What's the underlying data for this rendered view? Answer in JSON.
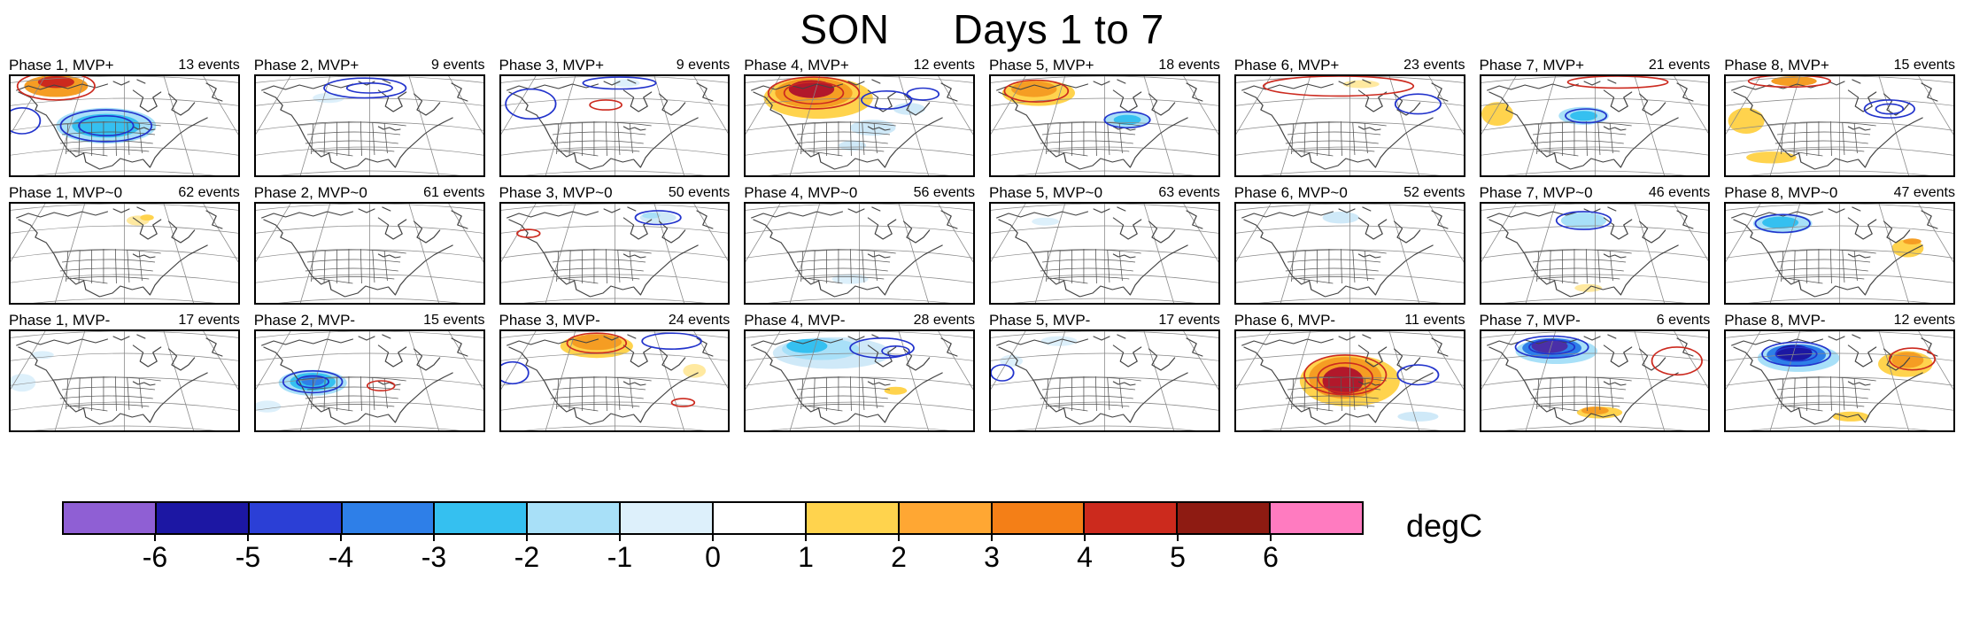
{
  "title": {
    "left": "SON",
    "right": "Days 1 to 7"
  },
  "colorbar": {
    "unit": "degC",
    "ticks": [
      "-6",
      "-5",
      "-4",
      "-3",
      "-2",
      "-1",
      "0",
      "1",
      "2",
      "3",
      "4",
      "5",
      "6"
    ],
    "colors": [
      "#8f5fd4",
      "#1c17a3",
      "#2b3fd6",
      "#2e7fe8",
      "#35c0f0",
      "#a8e0f8",
      "#ddf0fb",
      "#ffffff",
      "#ffd34d",
      "#ffa733",
      "#f47f17",
      "#cc2a1d",
      "#8e1b12",
      "#ff7bc0"
    ]
  },
  "contour_colors": {
    "b": "#2233cc",
    "r": "#cc2a1f"
  },
  "chart_data": {
    "type": "heatmap",
    "title": "SON Days 1 to 7",
    "panel_rows": [
      "MVP+",
      "MVP~0",
      "MVP-"
    ],
    "panel_columns": [
      "Phase 1",
      "Phase 2",
      "Phase 3",
      "Phase 4",
      "Phase 5",
      "Phase 6",
      "Phase 7",
      "Phase 8"
    ],
    "events_per_panel": [
      [
        13,
        9,
        9,
        12,
        18,
        23,
        21,
        15
      ],
      [
        62,
        61,
        50,
        56,
        63,
        52,
        46,
        47
      ],
      [
        17,
        15,
        24,
        28,
        17,
        11,
        6,
        12
      ]
    ],
    "colorbar": {
      "ticks": [
        -6,
        -5,
        -4,
        -3,
        -2,
        -1,
        0,
        1,
        2,
        3,
        4,
        5,
        6
      ],
      "unit": "degC"
    }
  },
  "panels": [
    {
      "label": "Phase 1, MVP+",
      "events": "13 events",
      "fills": [
        [
          0.2,
          0.1,
          0.14,
          0.11,
          "#f59d23"
        ],
        [
          0.2,
          0.06,
          0.08,
          0.06,
          "#cc2a1d"
        ],
        [
          0.42,
          0.5,
          0.22,
          0.18,
          "#a8e0f8"
        ],
        [
          0.42,
          0.5,
          0.15,
          0.12,
          "#35c0f0"
        ]
      ],
      "contours": [
        [
          0.2,
          0.1,
          0.17,
          0.14,
          "r"
        ],
        [
          0.42,
          0.5,
          0.2,
          0.16,
          "b"
        ],
        [
          0.42,
          0.5,
          0.12,
          0.1,
          "b"
        ],
        [
          0.05,
          0.45,
          0.08,
          0.13,
          "b"
        ]
      ]
    },
    {
      "label": "Phase 2, MVP+",
      "events": "9 events",
      "fills": [
        [
          0.32,
          0.22,
          0.07,
          0.05,
          "#ddf0fb"
        ]
      ],
      "contours": [
        [
          0.48,
          0.12,
          0.18,
          0.1,
          "b"
        ],
        [
          0.5,
          0.12,
          0.1,
          0.05,
          "b"
        ]
      ]
    },
    {
      "label": "Phase 3, MVP+",
      "events": "9 events",
      "fills": [
        [
          0.55,
          0.07,
          0.06,
          0.04,
          "#ddf0fb"
        ]
      ],
      "contours": [
        [
          0.13,
          0.28,
          0.11,
          0.15,
          "b"
        ],
        [
          0.52,
          0.07,
          0.16,
          0.06,
          "b"
        ],
        [
          0.46,
          0.29,
          0.07,
          0.05,
          "r"
        ]
      ]
    },
    {
      "label": "Phase 4, MVP+",
      "events": "12 events",
      "fills": [
        [
          0.32,
          0.22,
          0.24,
          0.21,
          "#ffd34d"
        ],
        [
          0.3,
          0.17,
          0.17,
          0.15,
          "#f59d23"
        ],
        [
          0.29,
          0.13,
          0.1,
          0.09,
          "#b2182b"
        ],
        [
          0.56,
          0.52,
          0.1,
          0.08,
          "#cfe9f8"
        ],
        [
          0.72,
          0.33,
          0.07,
          0.06,
          "#cfe9f8"
        ],
        [
          0.47,
          0.7,
          0.06,
          0.05,
          "#cfe9f8"
        ]
      ],
      "contours": [
        [
          0.3,
          0.17,
          0.2,
          0.16,
          "r"
        ],
        [
          0.3,
          0.17,
          0.13,
          0.11,
          "r"
        ],
        [
          0.62,
          0.24,
          0.11,
          0.09,
          "b"
        ],
        [
          0.78,
          0.18,
          0.07,
          0.06,
          "b"
        ]
      ]
    },
    {
      "label": "Phase 5, MVP+",
      "events": "18 events",
      "fills": [
        [
          0.21,
          0.17,
          0.16,
          0.13,
          "#ffd34d"
        ],
        [
          0.19,
          0.13,
          0.1,
          0.08,
          "#f59d23"
        ],
        [
          0.6,
          0.44,
          0.1,
          0.08,
          "#a8e0f8"
        ],
        [
          0.6,
          0.44,
          0.06,
          0.05,
          "#35c0f0"
        ]
      ],
      "contours": [
        [
          0.2,
          0.15,
          0.14,
          0.11,
          "r"
        ],
        [
          0.6,
          0.44,
          0.1,
          0.08,
          "b"
        ]
      ]
    },
    {
      "label": "Phase 6, MVP+",
      "events": "23 events",
      "fills": [
        [
          0.55,
          0.08,
          0.08,
          0.04,
          "#ffe9a0"
        ]
      ],
      "contours": [
        [
          0.45,
          0.1,
          0.33,
          0.1,
          "r"
        ],
        [
          0.8,
          0.28,
          0.1,
          0.1,
          "b"
        ]
      ]
    },
    {
      "label": "Phase 7, MVP+",
      "events": "21 events",
      "fills": [
        [
          0.07,
          0.38,
          0.07,
          0.12,
          "#ffd34d"
        ],
        [
          0.45,
          0.4,
          0.11,
          0.09,
          "#a8e0f8"
        ],
        [
          0.45,
          0.4,
          0.06,
          0.05,
          "#35c0f0"
        ]
      ],
      "contours": [
        [
          0.46,
          0.4,
          0.09,
          0.07,
          "b"
        ],
        [
          0.6,
          0.06,
          0.22,
          0.06,
          "r"
        ]
      ]
    },
    {
      "label": "Phase 8, MVP+",
      "events": "15 events",
      "fills": [
        [
          0.09,
          0.45,
          0.08,
          0.13,
          "#ffd34d"
        ],
        [
          0.2,
          0.82,
          0.11,
          0.06,
          "#ffd34d"
        ],
        [
          0.3,
          0.05,
          0.1,
          0.05,
          "#f59d23"
        ]
      ],
      "contours": [
        [
          0.72,
          0.33,
          0.11,
          0.09,
          "b"
        ],
        [
          0.72,
          0.33,
          0.06,
          0.05,
          "b"
        ],
        [
          0.28,
          0.05,
          0.18,
          0.06,
          "r"
        ]
      ]
    },
    {
      "label": "Phase 1, MVP~0",
      "events": "62 events",
      "fills": [
        [
          0.56,
          0.17,
          0.05,
          0.05,
          "#ffe9a0"
        ],
        [
          0.6,
          0.14,
          0.03,
          0.03,
          "#ffd34d"
        ]
      ],
      "contours": []
    },
    {
      "label": "Phase 2, MVP~0",
      "events": "61 events",
      "fills": [],
      "contours": []
    },
    {
      "label": "Phase 3, MVP~0",
      "events": "50 events",
      "fills": [
        [
          0.69,
          0.14,
          0.08,
          0.06,
          "#cfe9f8"
        ],
        [
          0.66,
          0.12,
          0.04,
          0.03,
          "#a8e0f8"
        ]
      ],
      "contours": [
        [
          0.12,
          0.3,
          0.05,
          0.04,
          "r"
        ],
        [
          0.69,
          0.14,
          0.1,
          0.07,
          "b"
        ]
      ]
    },
    {
      "label": "Phase 4, MVP~0",
      "events": "56 events",
      "fills": [
        [
          0.46,
          0.76,
          0.08,
          0.05,
          "#ddf0fb"
        ]
      ],
      "contours": []
    },
    {
      "label": "Phase 5, MVP~0",
      "events": "63 events",
      "fills": [
        [
          0.24,
          0.18,
          0.06,
          0.04,
          "#ddf0fb"
        ]
      ],
      "contours": []
    },
    {
      "label": "Phase 6, MVP~0",
      "events": "52 events",
      "fills": [
        [
          0.46,
          0.14,
          0.08,
          0.06,
          "#cfe9f8"
        ]
      ],
      "contours": []
    },
    {
      "label": "Phase 7, MVP~0",
      "events": "46 events",
      "fills": [
        [
          0.45,
          0.17,
          0.1,
          0.08,
          "#a8e0f8"
        ],
        [
          0.47,
          0.85,
          0.06,
          0.04,
          "#ffe9a0"
        ]
      ],
      "contours": [
        [
          0.45,
          0.17,
          0.12,
          0.09,
          "b"
        ]
      ]
    },
    {
      "label": "Phase 8, MVP~0",
      "events": "47 events",
      "fills": [
        [
          0.25,
          0.2,
          0.13,
          0.1,
          "#a8e0f8"
        ],
        [
          0.24,
          0.19,
          0.08,
          0.06,
          "#35c0f0"
        ],
        [
          0.8,
          0.45,
          0.07,
          0.09,
          "#ffd34d"
        ],
        [
          0.82,
          0.38,
          0.04,
          0.03,
          "#f59d23"
        ]
      ],
      "contours": [
        [
          0.25,
          0.2,
          0.12,
          0.09,
          "b"
        ]
      ]
    },
    {
      "label": "Phase 1, MVP-",
      "events": "17 events",
      "fills": [
        [
          0.05,
          0.52,
          0.06,
          0.09,
          "#ddf0fb"
        ],
        [
          0.14,
          0.24,
          0.05,
          0.04,
          "#ddf0fb"
        ]
      ],
      "contours": []
    },
    {
      "label": "Phase 2, MVP-",
      "events": "15 events",
      "fills": [
        [
          0.25,
          0.52,
          0.15,
          0.13,
          "#a8e0f8"
        ],
        [
          0.25,
          0.51,
          0.1,
          0.09,
          "#35c0f0"
        ],
        [
          0.25,
          0.5,
          0.05,
          0.05,
          "#2e7fe8"
        ],
        [
          0.05,
          0.76,
          0.06,
          0.06,
          "#ddf0fb"
        ]
      ],
      "contours": [
        [
          0.25,
          0.51,
          0.13,
          0.11,
          "b"
        ],
        [
          0.25,
          0.51,
          0.07,
          0.06,
          "b"
        ],
        [
          0.55,
          0.55,
          0.06,
          0.05,
          "r"
        ]
      ]
    },
    {
      "label": "Phase 3, MVP-",
      "events": "24 events",
      "fills": [
        [
          0.42,
          0.15,
          0.16,
          0.12,
          "#ffd34d"
        ],
        [
          0.42,
          0.11,
          0.11,
          0.08,
          "#f59d23"
        ],
        [
          0.85,
          0.4,
          0.05,
          0.07,
          "#ffe9a0"
        ]
      ],
      "contours": [
        [
          0.42,
          0.12,
          0.13,
          0.1,
          "r"
        ],
        [
          0.75,
          0.1,
          0.13,
          0.08,
          "b"
        ],
        [
          0.05,
          0.42,
          0.07,
          0.11,
          "b"
        ],
        [
          0.8,
          0.72,
          0.05,
          0.04,
          "r"
        ]
      ]
    },
    {
      "label": "Phase 4, MVP-",
      "events": "28 events",
      "fills": [
        [
          0.38,
          0.22,
          0.26,
          0.16,
          "#cfe9f8"
        ],
        [
          0.33,
          0.18,
          0.17,
          0.11,
          "#a8e0f8"
        ],
        [
          0.27,
          0.15,
          0.09,
          0.07,
          "#35c0f0"
        ],
        [
          0.66,
          0.6,
          0.05,
          0.04,
          "#ffd34d"
        ]
      ],
      "contours": [
        [
          0.6,
          0.17,
          0.14,
          0.1,
          "b"
        ],
        [
          0.66,
          0.2,
          0.06,
          0.05,
          "b"
        ]
      ]
    },
    {
      "label": "Phase 5, MVP-",
      "events": "17 events",
      "fills": [
        [
          0.3,
          0.1,
          0.08,
          0.05,
          "#ddf0fb"
        ],
        [
          0.09,
          0.3,
          0.05,
          0.06,
          "#ddf0fb"
        ]
      ],
      "contours": [
        [
          0.05,
          0.42,
          0.05,
          0.08,
          "b"
        ]
      ]
    },
    {
      "label": "Phase 6, MVP-",
      "events": "11 events",
      "fills": [
        [
          0.5,
          0.5,
          0.22,
          0.26,
          "#ffd34d"
        ],
        [
          0.48,
          0.47,
          0.16,
          0.21,
          "#f59d23"
        ],
        [
          0.47,
          0.5,
          0.09,
          0.14,
          "#b2182b"
        ],
        [
          0.8,
          0.86,
          0.09,
          0.05,
          "#cfe9f8"
        ]
      ],
      "contours": [
        [
          0.48,
          0.44,
          0.18,
          0.2,
          "r"
        ],
        [
          0.48,
          0.47,
          0.12,
          0.15,
          "r"
        ],
        [
          0.8,
          0.44,
          0.09,
          0.1,
          "b"
        ]
      ]
    },
    {
      "label": "Phase 7, MVP-",
      "events": "6 events",
      "fills": [
        [
          0.33,
          0.2,
          0.18,
          0.13,
          "#a8e0f8"
        ],
        [
          0.31,
          0.17,
          0.13,
          0.1,
          "#2e7fe8"
        ],
        [
          0.3,
          0.15,
          0.08,
          0.07,
          "#4a2fa8"
        ],
        [
          0.52,
          0.82,
          0.1,
          0.06,
          "#ffd34d"
        ],
        [
          0.5,
          0.8,
          0.06,
          0.04,
          "#f59d23"
        ]
      ],
      "contours": [
        [
          0.31,
          0.16,
          0.16,
          0.11,
          "b"
        ],
        [
          0.31,
          0.16,
          0.1,
          0.07,
          "b"
        ],
        [
          0.86,
          0.3,
          0.11,
          0.14,
          "r"
        ]
      ]
    },
    {
      "label": "Phase 8, MVP-",
      "events": "12 events",
      "fills": [
        [
          0.32,
          0.27,
          0.18,
          0.14,
          "#a8e0f8"
        ],
        [
          0.31,
          0.24,
          0.13,
          0.11,
          "#2e7fe8"
        ],
        [
          0.3,
          0.22,
          0.08,
          0.08,
          "#1c17a3"
        ],
        [
          0.79,
          0.33,
          0.12,
          0.13,
          "#ffd34d"
        ],
        [
          0.8,
          0.29,
          0.07,
          0.08,
          "#f59d23"
        ],
        [
          0.55,
          0.86,
          0.08,
          0.05,
          "#ffd34d"
        ]
      ],
      "contours": [
        [
          0.31,
          0.23,
          0.15,
          0.12,
          "b"
        ],
        [
          0.31,
          0.23,
          0.09,
          0.07,
          "b"
        ],
        [
          0.82,
          0.28,
          0.1,
          0.11,
          "r"
        ]
      ]
    }
  ]
}
